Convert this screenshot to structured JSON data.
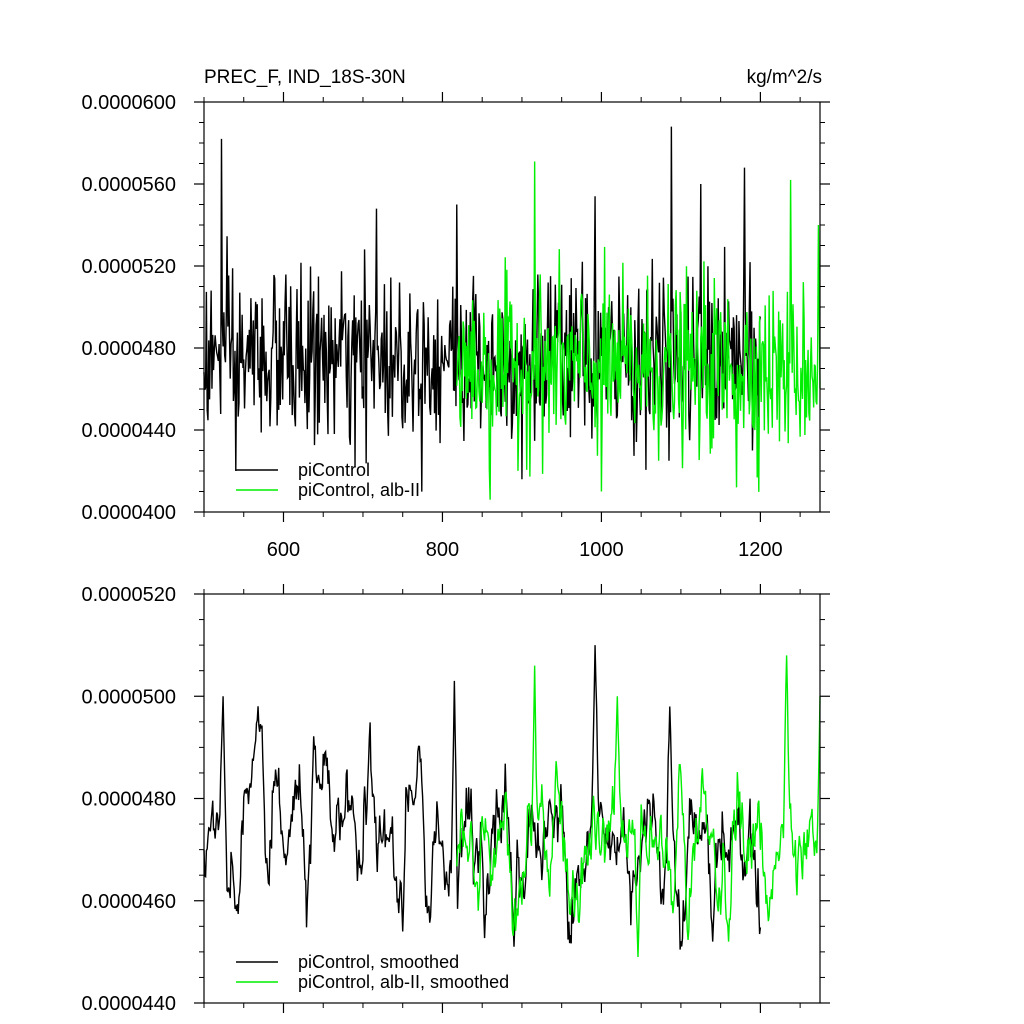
{
  "chart_data": [
    {
      "type": "line",
      "title_left": "PREC_F, IND_18S-30N",
      "title_right": "kg/m^2/s",
      "xlim": [
        500,
        1275
      ],
      "ylim": [
        4e-05,
        6e-05
      ],
      "x_ticks": [
        600,
        800,
        1000,
        1200
      ],
      "x_tick_labels": [
        "600",
        "800",
        "1000",
        "1200"
      ],
      "y_ticks": [
        4e-05,
        4.4e-05,
        4.8e-05,
        5.2e-05,
        5.6e-05,
        6e-05
      ],
      "y_tick_labels": [
        "0.0000400",
        "0.0000440",
        "0.0000480",
        "0.0000520",
        "0.0000560",
        "0.0000600"
      ],
      "legend_position": "bottom-left",
      "series": [
        {
          "name": "piControl",
          "color": "#000000",
          "x_range": [
            500,
            1200
          ],
          "mean": 4.75e-05,
          "spread": 2e-06,
          "peaks": [
            [
              522,
              5.82e-05
            ],
            [
              717,
              5.48e-05
            ],
            [
              818,
              5.5e-05
            ],
            [
              992,
              5.54e-05
            ],
            [
              1088,
              5.88e-05
            ],
            [
              1125,
              5.6e-05
            ],
            [
              1180,
              5.68e-05
            ]
          ],
          "troughs": [
            [
              540,
              4.2e-05
            ],
            [
              690,
              4.22e-05
            ],
            [
              900,
              4.16e-05
            ],
            [
              1085,
              4.25e-05
            ],
            [
              1190,
              4.3e-05
            ]
          ]
        },
        {
          "name": "piControl, alb-II",
          "color": "#00ee00",
          "x_range": [
            818,
            1275
          ],
          "mean": 4.7e-05,
          "spread": 2e-06,
          "peaks": [
            [
              916,
              5.71e-05
            ],
            [
              1170,
              5.87e-05
            ],
            [
              1238,
              5.62e-05
            ],
            [
              1273,
              5.4e-05
            ]
          ],
          "troughs": [
            [
              860,
              4.06e-05
            ],
            [
              1000,
              4.1e-05
            ],
            [
              1170,
              4.12e-05
            ]
          ]
        }
      ]
    },
    {
      "type": "line",
      "xlim": [
        500,
        1275
      ],
      "ylim": [
        4.4e-05,
        5.2e-05
      ],
      "x_ticks": [
        600,
        800,
        1000,
        1200
      ],
      "y_ticks": [
        4.4e-05,
        4.6e-05,
        4.8e-05,
        5e-05,
        5.2e-05
      ],
      "y_tick_labels": [
        "0.0000440",
        "0.0000460",
        "0.0000480",
        "0.0000500",
        "0.0000520"
      ],
      "legend_position": "bottom-left",
      "series": [
        {
          "name": "piControl, smoothed",
          "color": "#000000",
          "x_range": [
            500,
            1200
          ],
          "mean": 4.72e-05,
          "spread": 1e-06,
          "peaks": [
            [
              524,
              5e-05
            ],
            [
              815,
              5.03e-05
            ],
            [
              992,
              5.1e-05
            ],
            [
              1086,
              4.98e-05
            ]
          ],
          "troughs": [
            [
              541,
              4.58e-05
            ],
            [
              750,
              4.54e-05
            ],
            [
              890,
              4.51e-05
            ],
            [
              1140,
              4.52e-05
            ]
          ]
        },
        {
          "name": "piControl, alb-II, smoothed",
          "color": "#00ee00",
          "x_range": [
            818,
            1275
          ],
          "mean": 4.71e-05,
          "spread": 1e-06,
          "peaks": [
            [
              916,
              5.06e-05
            ],
            [
              1020,
              5e-05
            ],
            [
              1233,
              5.08e-05
            ],
            [
              1275,
              5e-05
            ]
          ],
          "troughs": [
            [
              1046,
              4.49e-05
            ],
            [
              1160,
              4.52e-05
            ],
            [
              1210,
              4.56e-05
            ]
          ]
        }
      ]
    }
  ]
}
